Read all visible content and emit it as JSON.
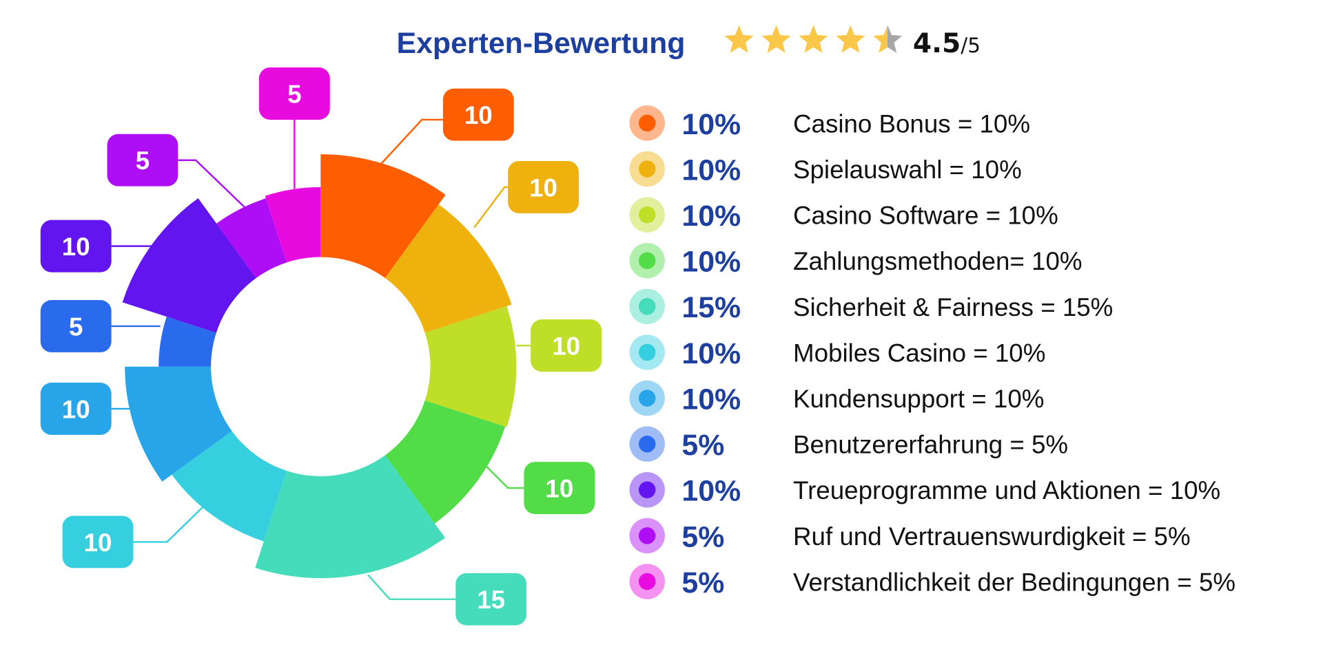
{
  "header": {
    "title": "Experten-Bewertung",
    "rating": 4.5,
    "rating_text": "4.5",
    "rating_max_text": "/5",
    "star_color": "#fbc748",
    "star_empty_color": "#a6a6a6",
    "title_color": "#1c3fa0"
  },
  "chart_data": {
    "type": "pie",
    "variant": "donut",
    "start": "top",
    "direction": "clockwise",
    "categories": [
      "Casino Bonus",
      "Spielauswahl",
      "Casino Software",
      "Zahlungsmethoden",
      "Sicherheit & Fairness",
      "Mobiles Casino",
      "Kundensupport",
      "Benutzererfahrung",
      "Treueprogramme und Aktionen",
      "Ruf und Vertrauenswurdigkeit",
      "Verstandlichkeit der Bedingungen"
    ],
    "values": [
      10,
      10,
      10,
      10,
      15,
      10,
      10,
      5,
      10,
      5,
      5
    ],
    "data_labels": [
      "10",
      "10",
      "10",
      "10",
      "15",
      "10",
      "10",
      "5",
      "10",
      "5",
      "5"
    ],
    "colors": [
      "#ff5e00",
      "#eeb10e",
      "#bede28",
      "#52dc48",
      "#45dcbc",
      "#35cfe0",
      "#28a5e8",
      "#2a6bee",
      "#6315f0",
      "#ae0ef5",
      "#e80be0"
    ],
    "legend_placement": "right",
    "legend": [
      {
        "pct": "10%",
        "label": "Casino Bonus = 10%"
      },
      {
        "pct": "10%",
        "label": "Spielauswahl = 10%"
      },
      {
        "pct": "10%",
        "label": "Casino Software = 10%"
      },
      {
        "pct": "10%",
        "label": "Zahlungsmethoden= 10%"
      },
      {
        "pct": "15%",
        "label": "Sicherheit & Fairness = 15%"
      },
      {
        "pct": "10%",
        "label": "Mobiles Casino = 10%"
      },
      {
        "pct": "10%",
        "label": "Kundensupport = 10%"
      },
      {
        "pct": "5%",
        "label": "Benutzererfahrung = 5%"
      },
      {
        "pct": "10%",
        "label": "Treueprogramme und Aktionen = 10%"
      },
      {
        "pct": "5%",
        "label": "Ruf und Vertrauenswurdigkeit = 5%"
      },
      {
        "pct": "5%",
        "label": "Verstandlichkeit der Bedingungen = 5%"
      }
    ]
  }
}
